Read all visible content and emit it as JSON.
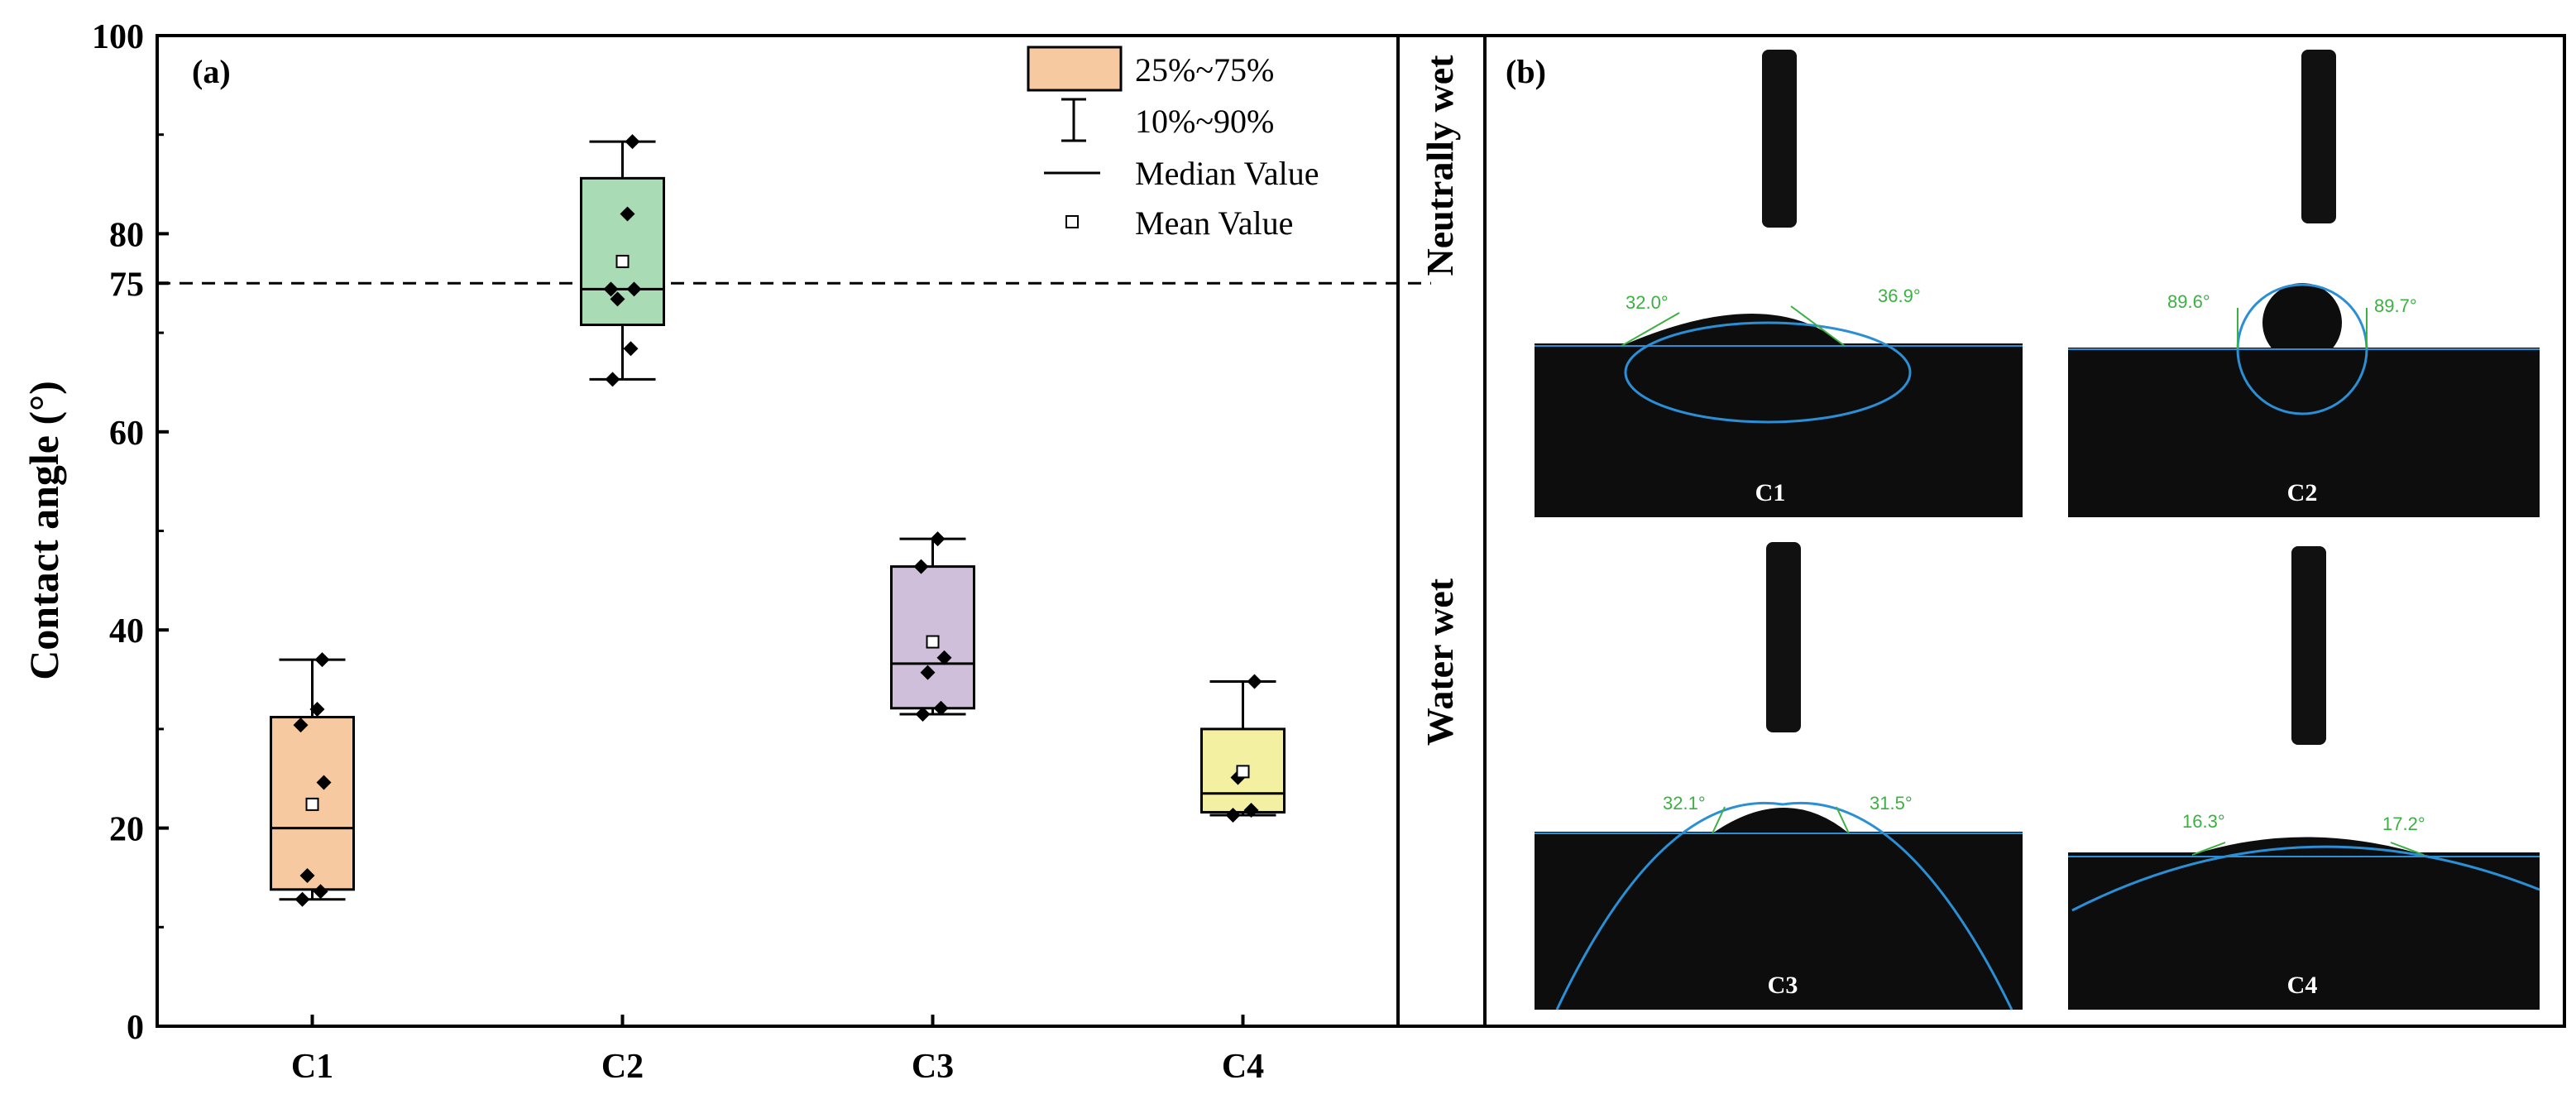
{
  "chart_data": [
    {
      "type": "box",
      "panel_label": "(a)",
      "ylabel": "Contact angle (°)",
      "ylim": [
        0,
        100
      ],
      "yticks": [
        "0",
        "20",
        "40",
        "60",
        "75",
        "80",
        "100"
      ],
      "categories": [
        "C1",
        "C2",
        "C3",
        "C4"
      ],
      "reference_line": 75,
      "boxes": [
        {
          "category": "C1",
          "color": "#f7c9a0",
          "q1": 13.8,
          "q3": 31.2,
          "median": 20.0,
          "mean": 22.4,
          "p10": 12.8,
          "p90": 37.0,
          "points": [
            12.8,
            13.6,
            15.2,
            24.6,
            30.4,
            32.0,
            37.0
          ]
        },
        {
          "category": "C2",
          "color": "#a9dcb5",
          "q1": 70.8,
          "q3": 85.6,
          "median": 74.4,
          "mean": 77.2,
          "p10": 65.3,
          "p90": 89.3,
          "points": [
            65.3,
            68.4,
            73.4,
            74.4,
            74.4,
            82.0,
            89.3
          ]
        },
        {
          "category": "C3",
          "color": "#d0bfdb",
          "q1": 32.1,
          "q3": 46.4,
          "median": 36.6,
          "mean": 38.8,
          "p10": 31.5,
          "p90": 49.2,
          "points": [
            31.5,
            32.1,
            35.7,
            37.2,
            46.4,
            49.2
          ]
        },
        {
          "category": "C4",
          "color": "#f3f0a1",
          "q1": 21.6,
          "q3": 30.0,
          "median": 23.5,
          "mean": 25.7,
          "p10": 21.3,
          "p90": 34.8,
          "points": [
            21.3,
            21.8,
            25.1,
            34.8
          ]
        }
      ],
      "legend": {
        "position": "top-right",
        "items": [
          "25%~75%",
          "10%~90%",
          "Median Value",
          "Mean Value"
        ]
      }
    }
  ],
  "panel_b": {
    "label": "(b)",
    "row_labels": [
      "Neutrally  wet",
      "Water  wet"
    ],
    "images": [
      {
        "sample": "C1",
        "left_angle": "32.0°",
        "right_angle": "36.9°"
      },
      {
        "sample": "C2",
        "left_angle": "89.6°",
        "right_angle": "89.7°"
      },
      {
        "sample": "C3",
        "left_angle": "32.1°",
        "right_angle": "31.5°"
      },
      {
        "sample": "C4",
        "left_angle": "16.3°",
        "right_angle": "17.2°"
      }
    ]
  },
  "colors": {
    "axis": "#000000",
    "drop_outline": "#2b8fd6",
    "angle_text": "#3cb043",
    "photo_bg": "#0d0d0d"
  }
}
